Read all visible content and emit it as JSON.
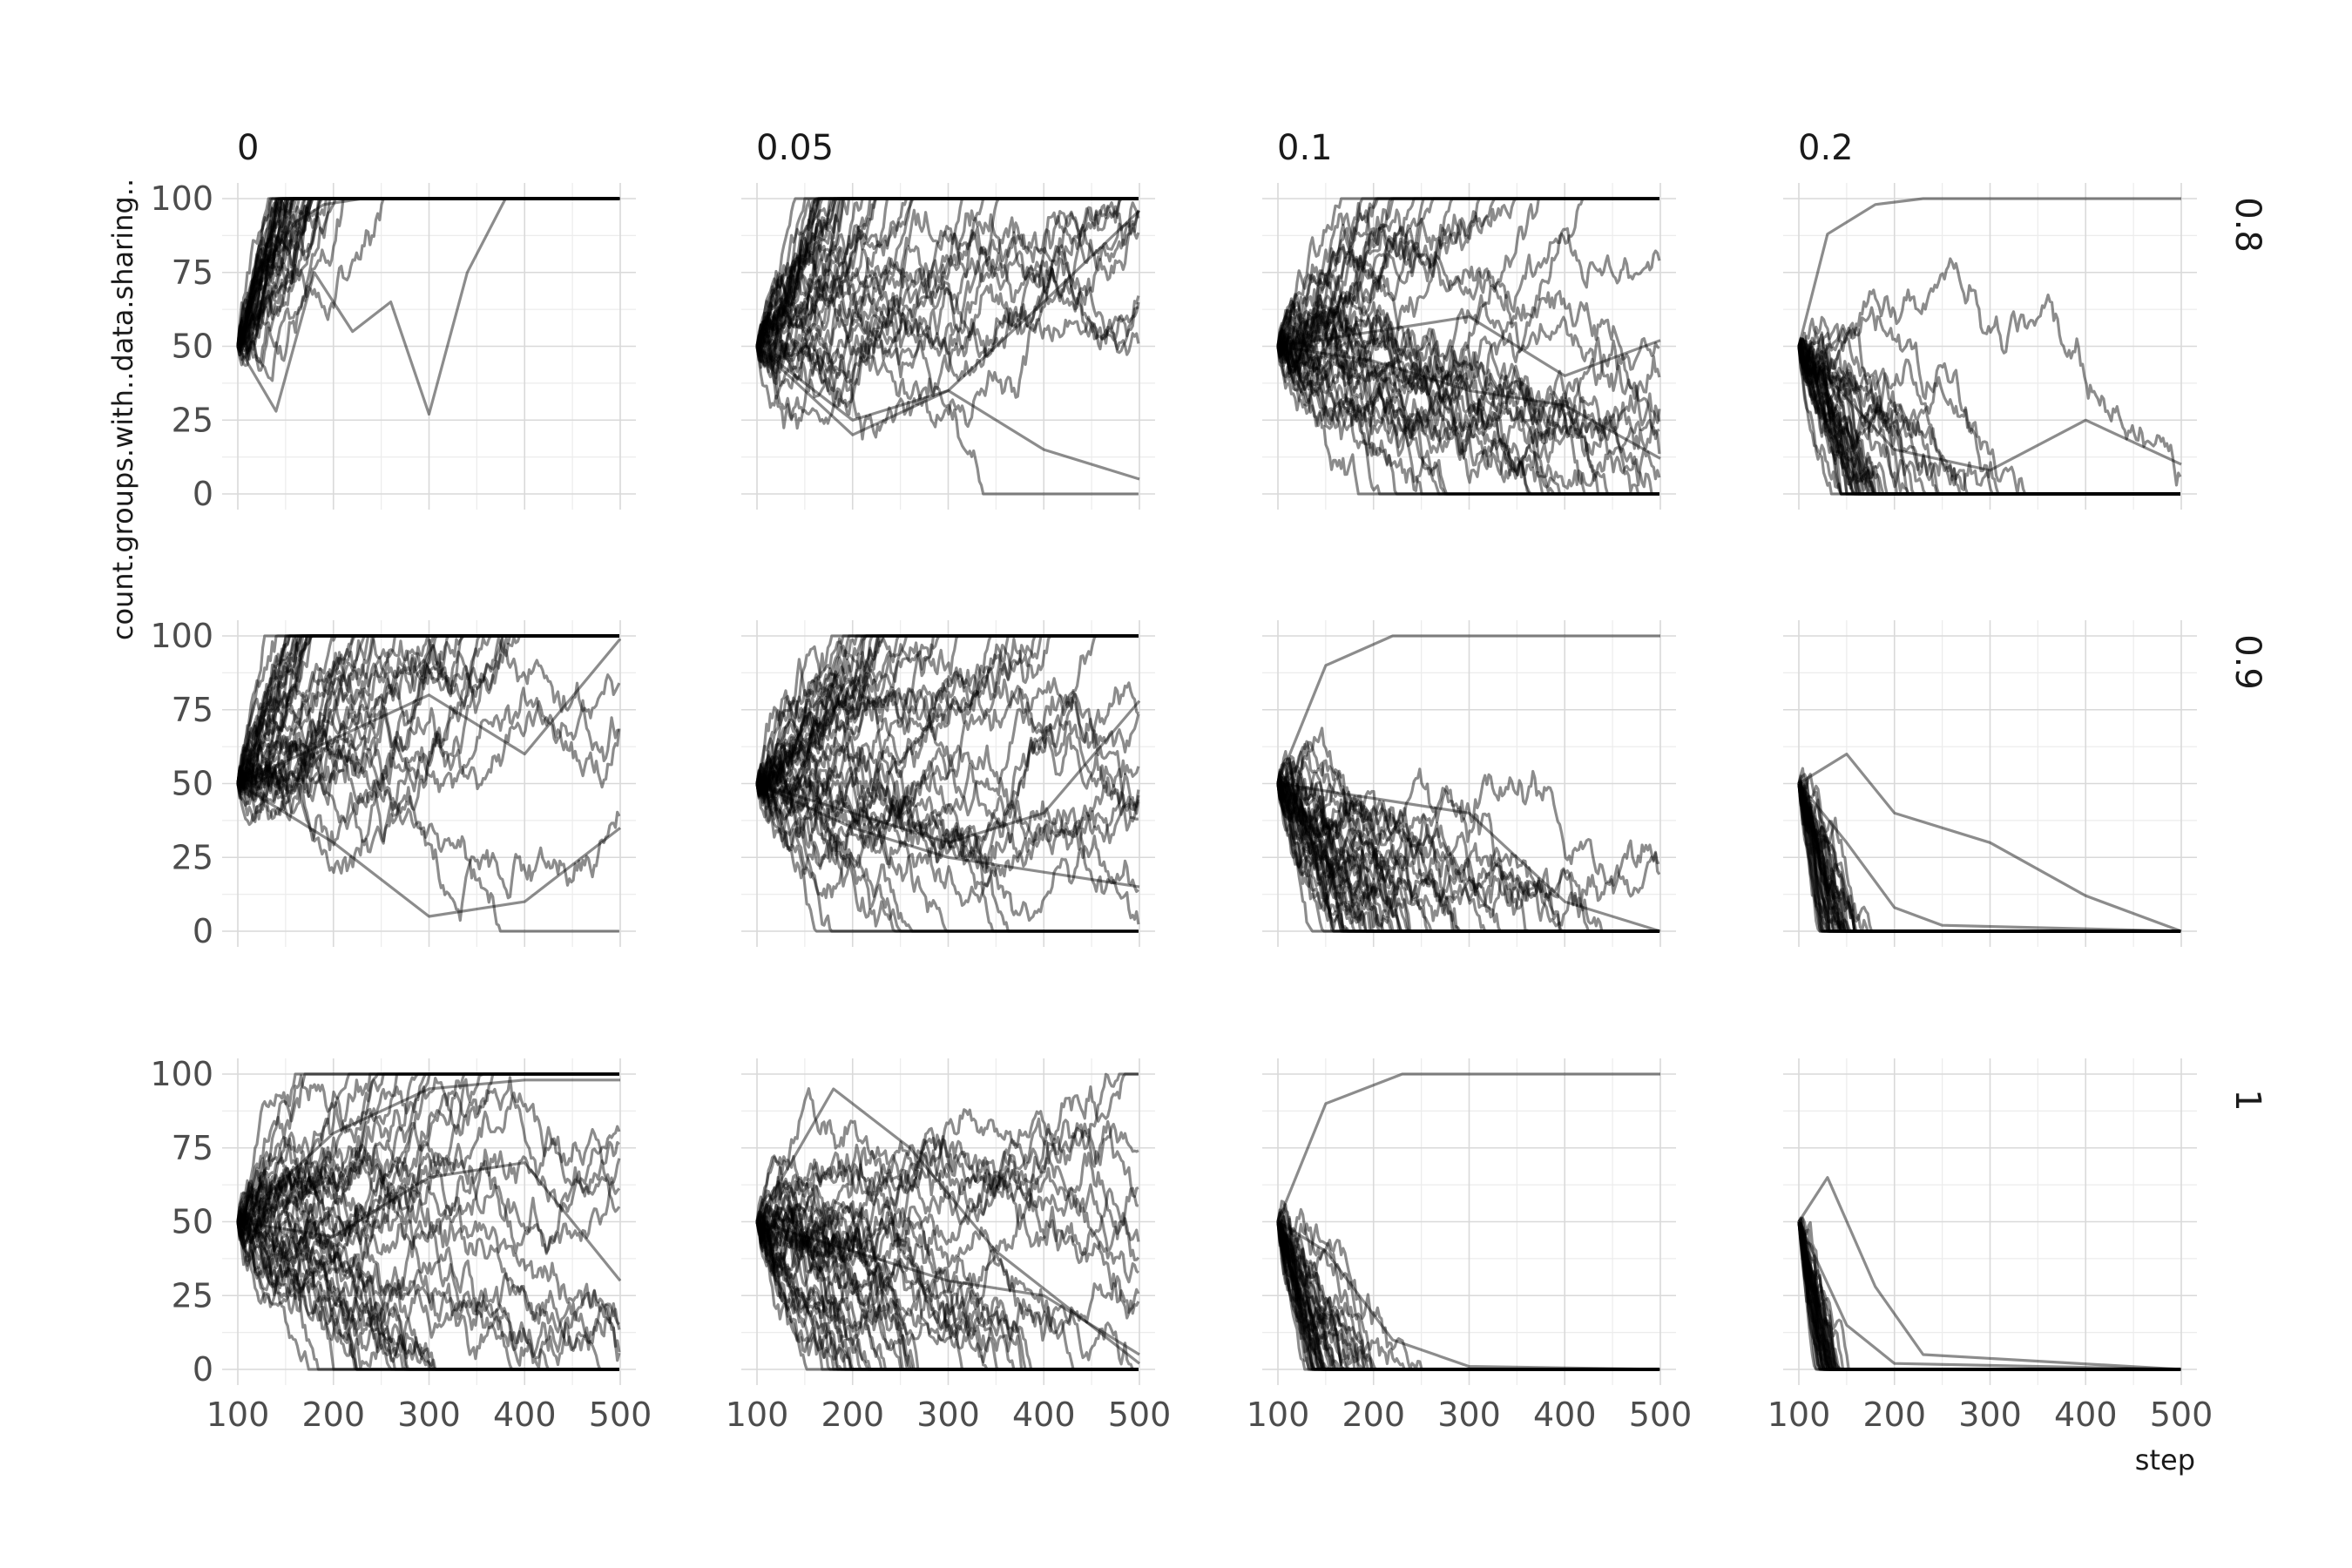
{
  "chart_data": {
    "type": "line",
    "layout": "facet-grid",
    "xlabel": "step",
    "ylabel": "count.groups.with..data.sharing..",
    "xlim": [
      100,
      500
    ],
    "ylim": [
      0,
      100
    ],
    "x_ticks": [
      "100",
      "200",
      "300",
      "400",
      "500"
    ],
    "y_ticks": [
      "0",
      "25",
      "50",
      "75",
      "100"
    ],
    "col_facets": [
      "0",
      "0.05",
      "0.1",
      "0.2"
    ],
    "row_facets": [
      "0.8",
      "0.9",
      "1"
    ],
    "grid": true,
    "line_color": "#000000",
    "line_alpha": 0.45,
    "runs_per_panel": 40,
    "start_value": 50,
    "x_end": 500,
    "panels": [
      {
        "row": "0.8",
        "col": "0",
        "series": [
          {
            "x": [
              100,
              130,
              160,
              190,
              230,
              500
            ],
            "values": [
              50,
              78,
              92,
              98,
              100,
              100
            ]
          },
          {
            "x": [
              100,
              140,
              180,
              220,
              260,
              300,
              340,
              380,
              500
            ],
            "values": [
              50,
              28,
              75,
              55,
              65,
              27,
              75,
              100,
              100
            ]
          }
        ]
      },
      {
        "row": "0.8",
        "col": "0.05",
        "series": [
          {
            "x": [
              100,
              200,
              300,
              400,
              500
            ],
            "values": [
              50,
              20,
              35,
              15,
              5
            ]
          },
          {
            "x": [
              100,
              200,
              300,
              400,
              500
            ],
            "values": [
              50,
              25,
              35,
              65,
              96
            ]
          }
        ]
      },
      {
        "row": "0.8",
        "col": "0.1",
        "series": [
          {
            "x": [
              100,
              200,
              300,
              400,
              500
            ],
            "values": [
              50,
              45,
              35,
              30,
              12
            ]
          },
          {
            "x": [
              100,
              200,
              300,
              400,
              500
            ],
            "values": [
              50,
              55,
              60,
              40,
              52
            ]
          }
        ]
      },
      {
        "row": "0.8",
        "col": "0.2",
        "series": [
          {
            "x": [
              100,
              130,
              180,
              230,
              500
            ],
            "values": [
              50,
              88,
              98,
              100,
              100
            ]
          },
          {
            "x": [
              100,
              200,
              300,
              400,
              500
            ],
            "values": [
              50,
              15,
              8,
              25,
              10
            ]
          }
        ]
      },
      {
        "row": "0.9",
        "col": "0",
        "series": [
          {
            "x": [
              100,
              200,
              300,
              400,
              500
            ],
            "values": [
              50,
              30,
              5,
              10,
              35
            ]
          },
          {
            "x": [
              100,
              200,
              300,
              400,
              500
            ],
            "values": [
              50,
              65,
              80,
              60,
              99
            ]
          }
        ]
      },
      {
        "row": "0.9",
        "col": "0.05",
        "series": [
          {
            "x": [
              100,
              200,
              300,
              400,
              500
            ],
            "values": [
              50,
              40,
              30,
              40,
              78
            ]
          },
          {
            "x": [
              100,
              200,
              300,
              400,
              500
            ],
            "values": [
              50,
              35,
              25,
              20,
              15
            ]
          }
        ]
      },
      {
        "row": "0.9",
        "col": "0.1",
        "series": [
          {
            "x": [
              100,
              150,
              220,
              300,
              500
            ],
            "values": [
              50,
              90,
              100,
              100,
              100
            ]
          },
          {
            "x": [
              100,
              200,
              300,
              400,
              500
            ],
            "values": [
              50,
              45,
              40,
              10,
              0
            ]
          }
        ]
      },
      {
        "row": "0.9",
        "col": "0.2",
        "series": [
          {
            "x": [
              100,
              150,
              200,
              300,
              400,
              500
            ],
            "values": [
              50,
              60,
              40,
              30,
              12,
              0
            ]
          },
          {
            "x": [
              100,
              150,
              200,
              250,
              500
            ],
            "values": [
              50,
              30,
              8,
              2,
              0
            ]
          }
        ]
      },
      {
        "row": "1",
        "col": "0",
        "series": [
          {
            "x": [
              100,
              200,
              300,
              400,
              500
            ],
            "values": [
              50,
              80,
              95,
              98,
              98
            ]
          },
          {
            "x": [
              100,
              200,
              300,
              400,
              500
            ],
            "values": [
              50,
              45,
              65,
              70,
              30
            ]
          }
        ]
      },
      {
        "row": "1",
        "col": "0.05",
        "series": [
          {
            "x": [
              100,
              180,
              260,
              350,
              500
            ],
            "values": [
              50,
              95,
              75,
              40,
              2
            ]
          },
          {
            "x": [
              100,
              200,
              300,
              400,
              500
            ],
            "values": [
              50,
              40,
              30,
              25,
              5
            ]
          }
        ]
      },
      {
        "row": "1",
        "col": "0.1",
        "series": [
          {
            "x": [
              100,
              150,
              230,
              500
            ],
            "values": [
              50,
              90,
              100,
              100
            ]
          },
          {
            "x": [
              100,
              150,
              220,
              300,
              500
            ],
            "values": [
              50,
              40,
              10,
              1,
              0
            ]
          }
        ]
      },
      {
        "row": "1",
        "col": "0.2",
        "series": [
          {
            "x": [
              100,
              130,
              180,
              230,
              500
            ],
            "values": [
              50,
              65,
              28,
              5,
              0
            ]
          },
          {
            "x": [
              100,
              150,
              200,
              500
            ],
            "values": [
              50,
              15,
              2,
              0
            ]
          }
        ]
      }
    ]
  }
}
